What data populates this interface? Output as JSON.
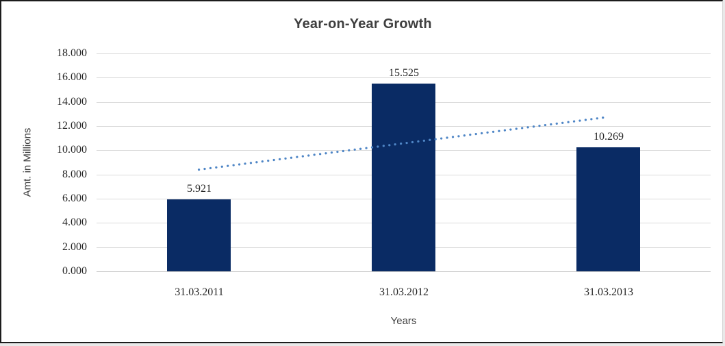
{
  "chart_data": {
    "type": "bar",
    "title": "Year-on-Year Growth",
    "xlabel": "Years",
    "ylabel": "Amt. in Millions",
    "categories": [
      "31.03.2011",
      "31.03.2012",
      "31.03.2013"
    ],
    "values": [
      5.921,
      15.525,
      10.269
    ],
    "value_labels": [
      "5.921",
      "15.525",
      "10.269"
    ],
    "ylim": [
      0,
      18
    ],
    "ytick_step": 2,
    "ytick_labels": [
      "0.000",
      "2.000",
      "4.000",
      "6.000",
      "8.000",
      "10.000",
      "12.000",
      "14.000",
      "16.000",
      "18.000"
    ],
    "grid": "horizontal",
    "legend": "none",
    "trendline": {
      "style": "dotted",
      "start_value": 8.4,
      "end_value": 12.75,
      "color": "#4f86c6"
    },
    "colors": {
      "bar": "#0a2b64",
      "gridline": "#d9d9d9",
      "title_text": "#3f3f3f",
      "tick_text": "#262626",
      "background": "#ffffff"
    }
  }
}
